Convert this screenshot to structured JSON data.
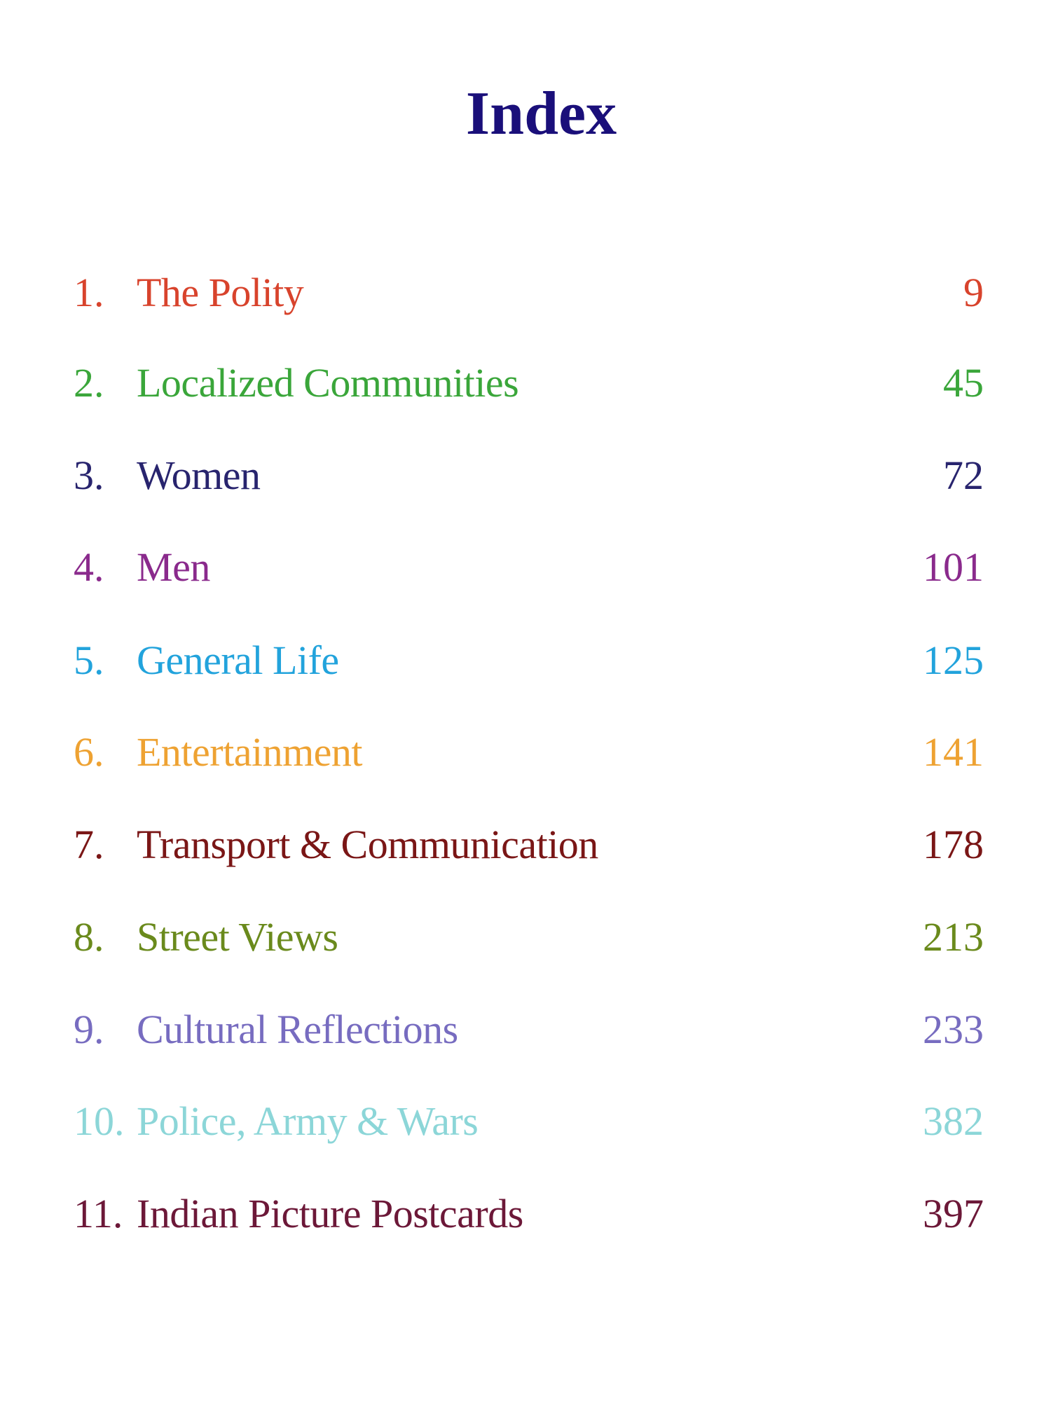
{
  "title": "Index",
  "entries": [
    {
      "number": "1.",
      "label": "The Polity",
      "page": "9",
      "color": "#d8432c"
    },
    {
      "number": "2.",
      "label": "Localized Communities",
      "page": "45",
      "color": "#3aa63a"
    },
    {
      "number": "3.",
      "label": "Women",
      "page": "72",
      "color": "#28246e"
    },
    {
      "number": "4.",
      "label": "Men",
      "page": "101",
      "color": "#8a2a8c"
    },
    {
      "number": "5.",
      "label": "General Life",
      "page": "125",
      "color": "#22a3dc"
    },
    {
      "number": "6.",
      "label": "Entertainment",
      "page": "141",
      "color": "#eea232"
    },
    {
      "number": "7.",
      "label": "Transport & Communication",
      "page": "178",
      "color": "#7a1616"
    },
    {
      "number": "8.",
      "label": "Street Views",
      "page": "213",
      "color": "#6a8a1c"
    },
    {
      "number": "9.",
      "label": "Cultural Reflections",
      "page": "233",
      "color": "#776cc0"
    },
    {
      "number": "10.",
      "label": "Police, Army & Wars",
      "page": "382",
      "color": "#8cd6d8"
    },
    {
      "number": "11.",
      "label": "Indian Picture Postcards",
      "page": "397",
      "color": "#6c1838"
    }
  ]
}
